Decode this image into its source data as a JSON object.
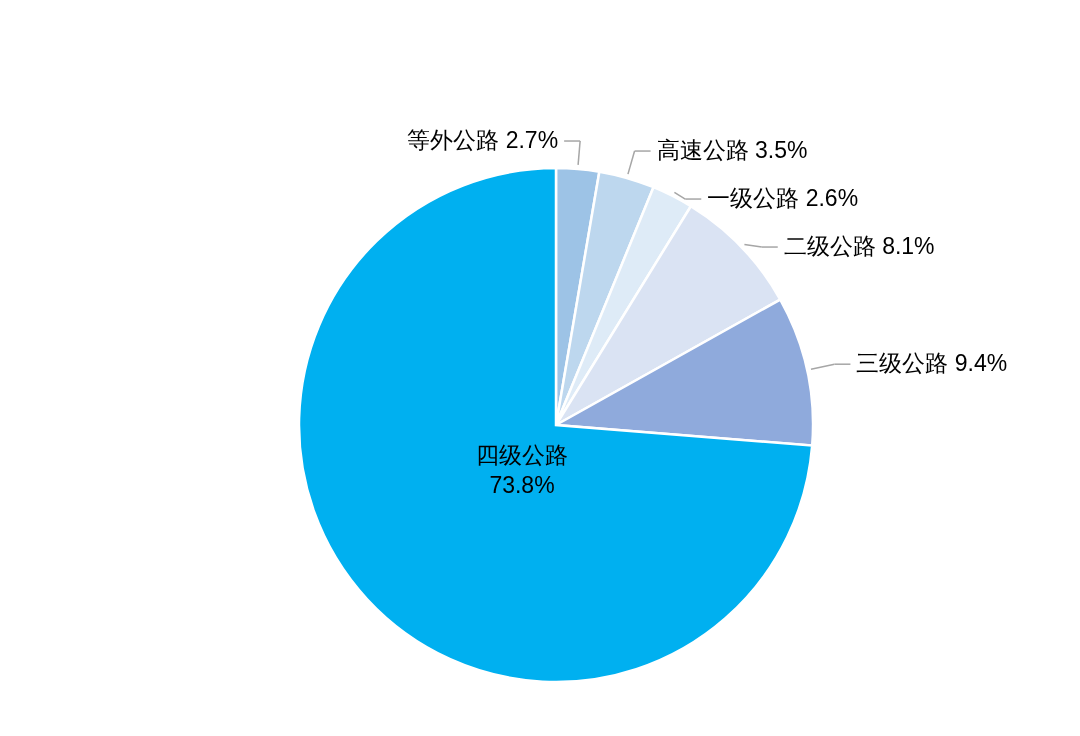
{
  "chart_data": {
    "type": "pie",
    "categories": [
      "等外公路",
      "高速公路",
      "一级公路",
      "二级公路",
      "三级公路",
      "四级公路"
    ],
    "values": [
      2.7,
      3.5,
      2.6,
      8.1,
      9.4,
      73.8
    ],
    "value_labels": [
      "2.7%",
      "3.5%",
      "2.6%",
      "8.1%",
      "9.4%",
      "73.8%"
    ],
    "colors": [
      "#9dc3e6",
      "#bdd7ee",
      "#deebf7",
      "#dae3f3",
      "#8faadc",
      "#00b0f0"
    ]
  }
}
